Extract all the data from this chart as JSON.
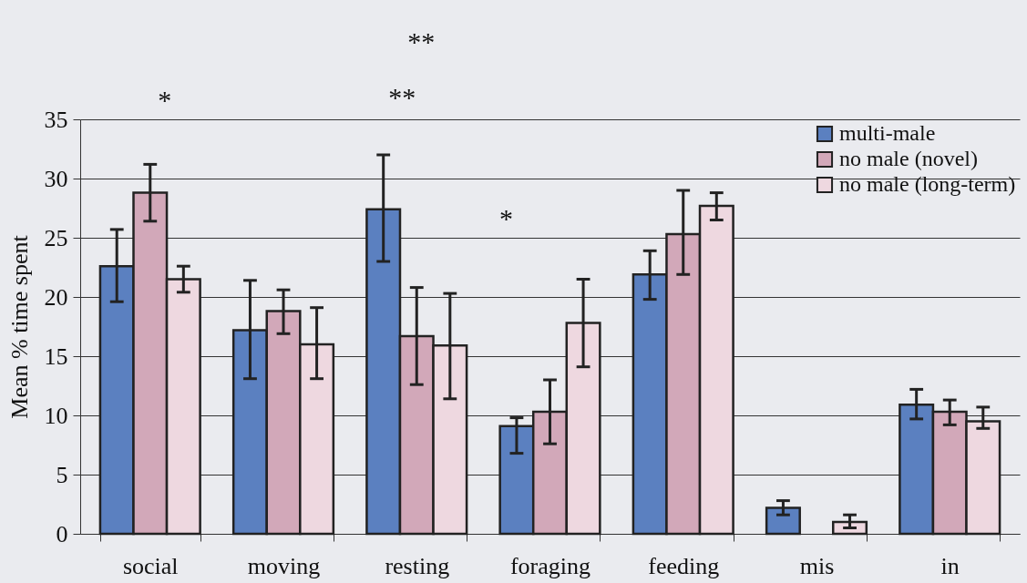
{
  "chart_data": {
    "type": "bar",
    "ylabel": "Mean % time spent",
    "categories": [
      "social",
      "moving",
      "resting",
      "foraging",
      "feeding",
      "mis",
      "in"
    ],
    "series": [
      {
        "name": "multi-male",
        "color": "#5b80c0",
        "values": [
          22.6,
          17.2,
          27.4,
          9.1,
          21.9,
          2.2,
          10.9
        ],
        "errors": [
          [
            19.6,
            25.7
          ],
          [
            13.1,
            21.4
          ],
          [
            23.0,
            32.0
          ],
          [
            6.8,
            9.8
          ],
          [
            19.8,
            23.9
          ],
          [
            1.6,
            2.8
          ],
          [
            9.7,
            12.2
          ]
        ]
      },
      {
        "name": "no male (novel)",
        "color": "#d2a8b9",
        "values": [
          28.8,
          18.8,
          16.7,
          10.3,
          25.3,
          0,
          10.3
        ],
        "errors": [
          [
            26.4,
            31.2
          ],
          [
            16.9,
            20.6
          ],
          [
            12.6,
            20.8
          ],
          [
            7.6,
            13.0
          ],
          [
            21.9,
            29.0
          ],
          null,
          [
            9.2,
            11.3
          ]
        ]
      },
      {
        "name": "no male (long-term)",
        "color": "#eed8e0",
        "values": [
          21.5,
          16.0,
          15.9,
          17.8,
          27.7,
          1.0,
          9.5
        ],
        "errors": [
          [
            20.4,
            22.6
          ],
          [
            13.1,
            19.1
          ],
          [
            11.4,
            20.3
          ],
          [
            14.1,
            21.5
          ],
          [
            26.5,
            28.8
          ],
          [
            0.5,
            1.6
          ],
          [
            8.9,
            10.7
          ]
        ]
      }
    ],
    "ylim": [
      0,
      35
    ],
    "yticks": [
      0,
      5,
      10,
      15,
      20,
      25,
      30,
      35
    ],
    "grid": "y",
    "legend": "top right",
    "annotations": [
      "*",
      "**",
      "**",
      "*"
    ]
  }
}
